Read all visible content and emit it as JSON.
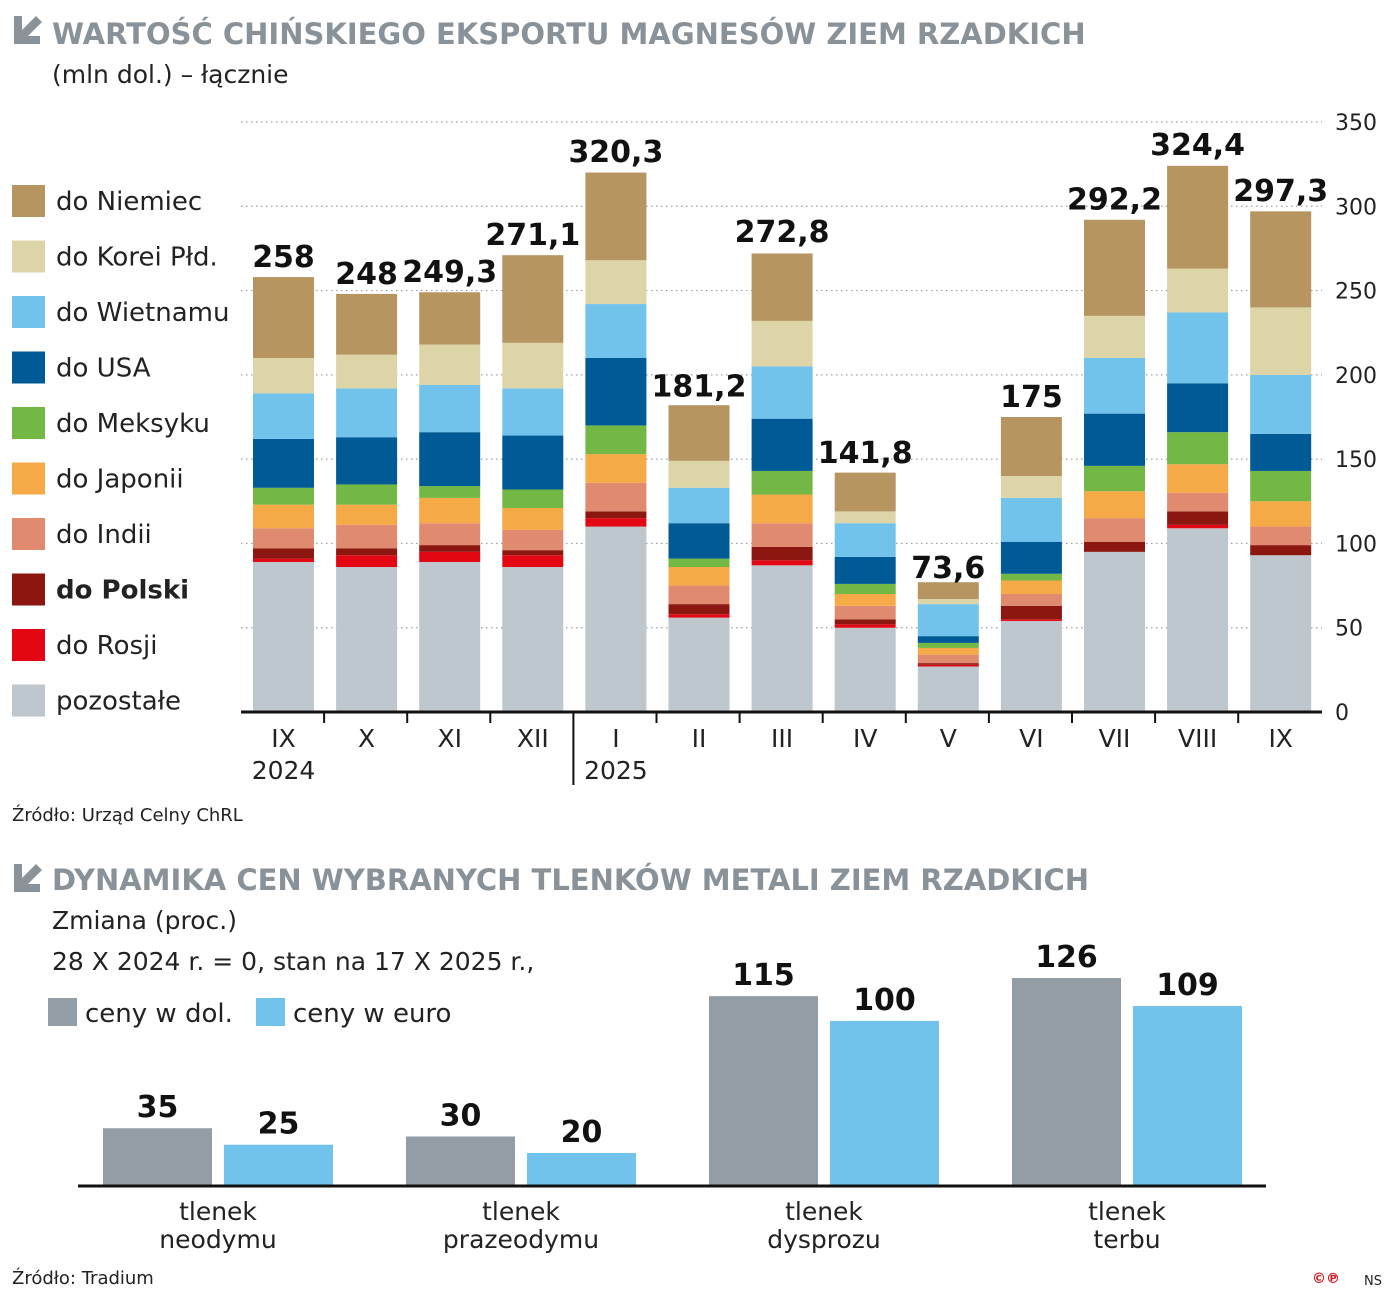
{
  "chart_data": [
    {
      "type": "bar",
      "stacked": true,
      "title": "WARTOŚĆ CHIŃSKIEGO EKSPORTU MAGNESÓW ZIEM RZADKICH",
      "subtitle": "(mln dol.) – łącznie",
      "categories": [
        "IX",
        "X",
        "XI",
        "XII",
        "I",
        "II",
        "III",
        "IV",
        "V",
        "VI",
        "VII",
        "VIII",
        "IX"
      ],
      "year_labels": [
        {
          "index": 0,
          "label": "2024"
        },
        {
          "index": 4,
          "label": "2025"
        }
      ],
      "totals": [
        258,
        248,
        249.3,
        271.1,
        320.3,
        181.2,
        272.8,
        141.8,
        73.6,
        175,
        292.2,
        324.4,
        297.3
      ],
      "total_labels": [
        "258",
        "248",
        "249,3",
        "271,1",
        "320,3",
        "181,2",
        "272,8",
        "141,8",
        "73,6",
        "175",
        "292,2",
        "324,4",
        "297,3"
      ],
      "series": [
        {
          "name": "pozostałe",
          "color": "#bec6ce",
          "values": [
            89,
            86,
            89,
            86,
            110,
            56,
            87,
            50,
            27,
            54,
            95,
            109,
            93
          ]
        },
        {
          "name": "do Rosji",
          "color": "#e30613",
          "values": [
            2,
            7,
            6,
            7,
            5,
            2,
            3,
            2,
            1,
            1,
            0,
            2,
            0
          ]
        },
        {
          "name": "do Polski",
          "color": "#8b1710",
          "values": [
            6,
            4,
            4,
            3,
            4,
            6,
            8,
            3,
            1,
            8,
            6,
            8,
            6
          ]
        },
        {
          "name": "do Indii",
          "color": "#e08a70",
          "values": [
            12,
            14,
            13,
            12,
            17,
            11,
            14,
            8,
            5,
            7,
            14,
            11,
            11
          ]
        },
        {
          "name": "do Japonii",
          "color": "#f6a947",
          "values": [
            14,
            12,
            15,
            13,
            17,
            11,
            17,
            7,
            4,
            8,
            16,
            17,
            15
          ]
        },
        {
          "name": "do Meksyku",
          "color": "#73b744",
          "values": [
            10,
            12,
            7,
            11,
            17,
            5,
            14,
            6,
            3,
            4,
            15,
            19,
            18
          ]
        },
        {
          "name": "do USA",
          "color": "#005a95",
          "values": [
            29,
            28,
            32,
            32,
            40,
            21,
            31,
            16,
            4,
            19,
            31,
            29,
            22
          ]
        },
        {
          "name": "do Wietnamu",
          "color": "#72c3ec",
          "values": [
            27,
            29,
            28,
            28,
            32,
            21,
            31,
            20,
            19,
            26,
            33,
            42,
            35
          ]
        },
        {
          "name": "do Korei Płd.",
          "color": "#ddd5a8",
          "values": [
            21,
            20,
            24,
            27,
            26,
            16,
            27,
            7,
            3,
            13,
            25,
            26,
            40
          ]
        },
        {
          "name": "do Niemiec",
          "color": "#b69560",
          "values": [
            48,
            36,
            31,
            52,
            52,
            33,
            40,
            23,
            10,
            35,
            57,
            61,
            57
          ]
        }
      ],
      "legend": [
        "do Niemiec",
        "do Korei Płd.",
        "do Wietnamu",
        "do USA",
        "do Meksyku",
        "do Japonii",
        "do Indii",
        "do Polski",
        "do Rosji",
        "pozostałe"
      ],
      "legend_bold": "do Polski",
      "yticks": [
        0,
        50,
        100,
        150,
        200,
        250,
        300,
        350
      ],
      "ylim": [
        0,
        350
      ],
      "grid": true,
      "source": "Źródło: Urząd Celny ChRL"
    },
    {
      "type": "bar",
      "title": "DYNAMIKA CEN WYBRANYCH TLENKÓW METALI ZIEM RZADKICH",
      "subtitle_lines": [
        "Zmiana (proc.)",
        "28 X 2024 r. = 0, stan na 17 X 2025 r.,"
      ],
      "categories": [
        [
          "tlenek",
          "neodymu"
        ],
        [
          "tlenek",
          "prazeodymu"
        ],
        [
          "tlenek",
          "dysprozu"
        ],
        [
          "tlenek",
          "terbu"
        ]
      ],
      "series": [
        {
          "name": "ceny w dol.",
          "color": "#939da6",
          "values": [
            35,
            30,
            115,
            126
          ]
        },
        {
          "name": "ceny w euro",
          "color": "#72c3ec",
          "values": [
            25,
            20,
            100,
            109
          ]
        }
      ],
      "ylim": [
        0,
        140
      ],
      "source": "Źródło: Tradium"
    }
  ],
  "footer": {
    "logo": "©℗",
    "credit": "NS"
  }
}
